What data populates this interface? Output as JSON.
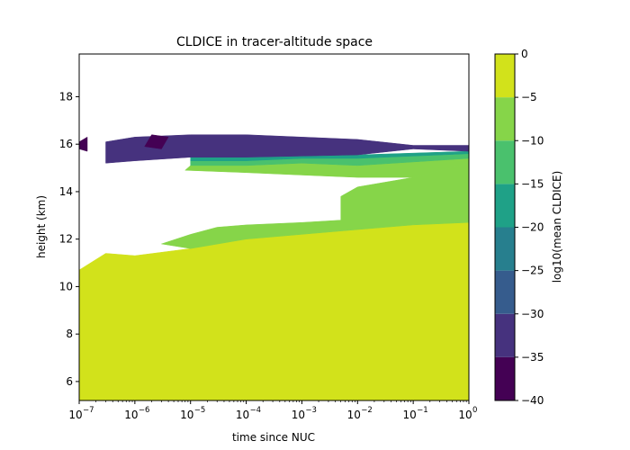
{
  "chart_data": {
    "type": "heatmap",
    "title": "CLDICE in tracer-altitude space",
    "xlabel": "time since NUC",
    "ylabel": "height (km)",
    "x_scale": "log",
    "xlim": [
      1e-07,
      1
    ],
    "ylim": [
      5.2,
      19.8
    ],
    "x_ticks": [
      {
        "value": 1e-07,
        "base": "10",
        "exp": "−7"
      },
      {
        "value": 1e-06,
        "base": "10",
        "exp": "−6"
      },
      {
        "value": 1e-05,
        "base": "10",
        "exp": "−5"
      },
      {
        "value": 0.0001,
        "base": "10",
        "exp": "−4"
      },
      {
        "value": 0.001,
        "base": "10",
        "exp": "−3"
      },
      {
        "value": 0.01,
        "base": "10",
        "exp": "−2"
      },
      {
        "value": 0.1,
        "base": "10",
        "exp": "−1"
      },
      {
        "value": 1,
        "base": "10",
        "exp": "0"
      }
    ],
    "y_ticks": [
      6,
      8,
      10,
      12,
      14,
      16,
      18
    ],
    "colorbar": {
      "label": "log10(mean CLDICE)",
      "range": [
        -40,
        0
      ],
      "ticks": [
        "0",
        "−5",
        "−10",
        "−15",
        "−20",
        "−25",
        "−30",
        "−35",
        "−40"
      ],
      "levels": [
        {
          "from": -40,
          "to": -35,
          "color": "#440154"
        },
        {
          "from": -35,
          "to": -30,
          "color": "#46327e"
        },
        {
          "from": -30,
          "to": -25,
          "color": "#365c8d"
        },
        {
          "from": -25,
          "to": -20,
          "color": "#277f8e"
        },
        {
          "from": -20,
          "to": -15,
          "color": "#1fa187"
        },
        {
          "from": -15,
          "to": -10,
          "color": "#4ac16d"
        },
        {
          "from": -10,
          "to": -5,
          "color": "#86d549"
        },
        {
          "from": -5,
          "to": 0,
          "color": "#d2e21b"
        }
      ]
    },
    "regions": [
      {
        "level": "-5 to 0",
        "color": "#d2e21b",
        "points": [
          [
            1e-07,
            5.2
          ],
          [
            1,
            5.2
          ],
          [
            1,
            12.7
          ],
          [
            0.1,
            12.6
          ],
          [
            0.01,
            12.4
          ],
          [
            0.001,
            12.2
          ],
          [
            0.0001,
            12.0
          ],
          [
            1e-05,
            11.6
          ],
          [
            1e-06,
            11.3
          ],
          [
            3e-07,
            11.4
          ],
          [
            1e-07,
            10.7
          ]
        ]
      },
      {
        "level": "-10 to -5",
        "color": "#86d549",
        "points": [
          [
            3e-06,
            11.8
          ],
          [
            1e-05,
            12.2
          ],
          [
            3e-05,
            12.5
          ],
          [
            0.0001,
            12.6
          ],
          [
            0.001,
            12.7
          ],
          [
            0.005,
            12.8
          ],
          [
            0.005,
            13.8
          ],
          [
            0.01,
            14.2
          ],
          [
            0.1,
            14.6
          ],
          [
            1,
            15.2
          ],
          [
            1,
            12.7
          ],
          [
            0.1,
            12.6
          ],
          [
            0.01,
            12.4
          ],
          [
            0.001,
            12.2
          ],
          [
            0.0001,
            12.0
          ],
          [
            1e-05,
            11.6
          ]
        ]
      },
      {
        "level": "-10 to -5",
        "color": "#86d549",
        "points": [
          [
            8e-06,
            14.9
          ],
          [
            0.0001,
            14.8
          ],
          [
            0.001,
            14.7
          ],
          [
            0.01,
            14.6
          ],
          [
            0.1,
            14.6
          ],
          [
            1,
            15.2
          ],
          [
            1,
            15.4
          ],
          [
            0.01,
            15.1
          ],
          [
            0.001,
            15.2
          ],
          [
            0.0001,
            15.1
          ],
          [
            1e-05,
            15.1
          ]
        ]
      },
      {
        "level": "-15 to -10",
        "color": "#4ac16d",
        "points": [
          [
            1e-05,
            15.1
          ],
          [
            0.0001,
            15.1
          ],
          [
            0.001,
            15.2
          ],
          [
            0.01,
            15.1
          ],
          [
            1,
            15.4
          ],
          [
            1,
            15.6
          ],
          [
            0.01,
            15.4
          ],
          [
            0.001,
            15.4
          ],
          [
            0.0001,
            15.3
          ],
          [
            1e-05,
            15.3
          ]
        ]
      },
      {
        "level": "-20 to -15",
        "color": "#1fa187",
        "points": [
          [
            1e-05,
            15.3
          ],
          [
            0.0001,
            15.3
          ],
          [
            0.001,
            15.4
          ],
          [
            0.01,
            15.4
          ],
          [
            1,
            15.6
          ],
          [
            1,
            15.7
          ],
          [
            0.01,
            15.55
          ],
          [
            0.001,
            15.5
          ],
          [
            0.0001,
            15.45
          ],
          [
            1e-05,
            15.45
          ]
        ]
      },
      {
        "level": "-35 to -30",
        "color": "#46327e",
        "points": [
          [
            3e-07,
            15.2
          ],
          [
            1e-06,
            15.3
          ],
          [
            1e-05,
            15.45
          ],
          [
            0.0001,
            15.45
          ],
          [
            0.001,
            15.5
          ],
          [
            0.01,
            15.55
          ],
          [
            0.1,
            15.8
          ],
          [
            1,
            15.7
          ],
          [
            1,
            15.95
          ],
          [
            0.1,
            15.95
          ],
          [
            0.01,
            16.2
          ],
          [
            0.001,
            16.3
          ],
          [
            0.0001,
            16.4
          ],
          [
            1e-05,
            16.4
          ],
          [
            1e-06,
            16.3
          ],
          [
            3e-07,
            16.1
          ]
        ]
      },
      {
        "level": "-40 to -35",
        "color": "#440154",
        "points": [
          [
            1e-07,
            15.8
          ],
          [
            1.4e-07,
            15.7
          ],
          [
            1.4e-07,
            16.3
          ],
          [
            1e-07,
            16.1
          ]
        ]
      },
      {
        "level": "-40 to -35",
        "color": "#440154",
        "points": [
          [
            1.5e-06,
            15.9
          ],
          [
            3e-06,
            15.8
          ],
          [
            4e-06,
            16.3
          ],
          [
            2e-06,
            16.4
          ]
        ]
      }
    ]
  }
}
